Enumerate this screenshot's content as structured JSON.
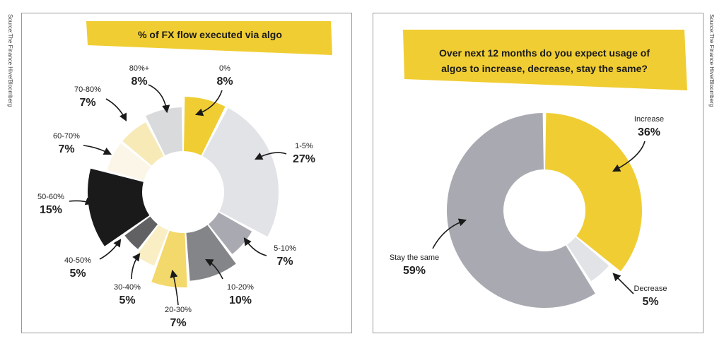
{
  "source": "Source:The Finance Hive/Bloomberg",
  "chart_data": [
    {
      "type": "pie",
      "title": "% of FX flow executed via algo",
      "categories": [
        "0%",
        "1-5%",
        "5-10%",
        "10-20%",
        "20-30%",
        "30-40%",
        "40-50%",
        "50-60%",
        "60-70%",
        "70-80%",
        "80%+"
      ],
      "values": [
        8,
        27,
        7,
        10,
        7,
        5,
        5,
        15,
        7,
        7,
        8
      ],
      "value_labels": [
        "8%",
        "27%",
        "7%",
        "10%",
        "7%",
        "5%",
        "5%",
        "15%",
        "7%",
        "7%",
        "8%"
      ],
      "colors": [
        "#f0cd33",
        "#e2e3e7",
        "#a9aab1",
        "#848589",
        "#f3d86b",
        "#f9eec4",
        "#616164",
        "#1a1a1a",
        "#fbf6e8",
        "#f7eab6",
        "#d9dadc"
      ]
    },
    {
      "type": "pie",
      "title": "Over next 12 months do you expect usage of algos to increase, decrease, stay the same?",
      "categories": [
        "Increase",
        "Decrease",
        "Stay the same"
      ],
      "values": [
        36,
        5,
        59
      ],
      "value_labels": [
        "36%",
        "5%",
        "59%"
      ],
      "colors": [
        "#f0cd33",
        "#e2e3e7",
        "#a9aab1"
      ]
    }
  ]
}
